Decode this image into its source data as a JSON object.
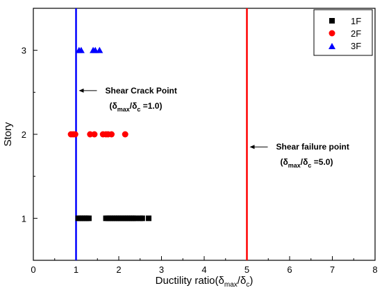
{
  "chart_data": {
    "type": "scatter",
    "xlabel": "Ductility ratio",
    "ylabel": "Story",
    "xlim": [
      0,
      8
    ],
    "ylim": [
      0.5,
      3.5
    ],
    "x_ticks": [
      0,
      1,
      2,
      3,
      4,
      5,
      6,
      7,
      8
    ],
    "y_ticks": [
      1,
      2,
      3
    ],
    "grid": false,
    "legend_position": "top-right",
    "series": [
      {
        "name": "1F",
        "marker": "square",
        "color": "#000000",
        "x": [
          1.05,
          1.1,
          1.15,
          1.2,
          1.25,
          1.3,
          1.7,
          1.75,
          1.8,
          1.85,
          1.9,
          1.95,
          2.0,
          2.05,
          2.1,
          2.15,
          2.2,
          2.25,
          2.3,
          2.35,
          2.4,
          2.5,
          2.55,
          2.7
        ],
        "y": [
          1,
          1,
          1,
          1,
          1,
          1,
          1,
          1,
          1,
          1,
          1,
          1,
          1,
          1,
          1,
          1,
          1,
          1,
          1,
          1,
          1,
          1,
          1,
          1
        ]
      },
      {
        "name": "2F",
        "marker": "circle",
        "color": "#ff0000",
        "x": [
          0.88,
          0.93,
          0.98,
          1.33,
          1.43,
          1.63,
          1.7,
          1.75,
          1.83,
          2.15
        ],
        "y": [
          2,
          2,
          2,
          2,
          2,
          2,
          2,
          2,
          2,
          2
        ]
      },
      {
        "name": "3F",
        "marker": "triangle",
        "color": "#0000ff",
        "x": [
          1.07,
          1.12,
          1.4,
          1.45,
          1.55
        ],
        "y": [
          3,
          3,
          3,
          3,
          3
        ]
      }
    ],
    "reference_lines": [
      {
        "x": 1.0,
        "color": "#0000ff"
      },
      {
        "x": 5.0,
        "color": "#ff0000"
      }
    ],
    "annotations": [
      {
        "label": "Shear Crack Point",
        "value_text": "=1.0)",
        "arrow_x": 1.0,
        "y": 2.52
      },
      {
        "label": "Shear failure point",
        "value_text": "=5.0)",
        "arrow_x": 5.0,
        "y": 1.85
      }
    ]
  }
}
